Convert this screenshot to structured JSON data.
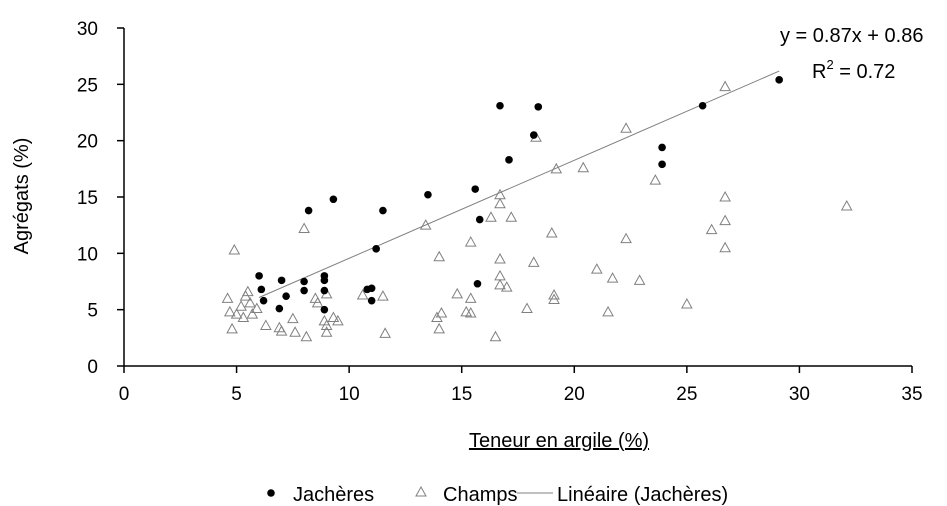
{
  "chart_data": {
    "type": "scatter",
    "title": "",
    "xlabel": "Teneur en argile (%)",
    "ylabel": "Agrégats (%)",
    "xlim": [
      0,
      35
    ],
    "ylim": [
      0,
      30
    ],
    "xticks": [
      0,
      5,
      10,
      15,
      20,
      25,
      30,
      35
    ],
    "yticks": [
      0,
      5,
      10,
      15,
      20,
      25,
      30
    ],
    "grid": false,
    "legend_position": "bottom",
    "series": [
      {
        "name": "Jachères",
        "marker": "filled-circle",
        "color": "#000000",
        "points": [
          [
            6.0,
            8.0
          ],
          [
            6.1,
            6.8
          ],
          [
            6.2,
            5.8
          ],
          [
            6.9,
            5.1
          ],
          [
            7.0,
            7.6
          ],
          [
            7.2,
            6.2
          ],
          [
            8.0,
            7.5
          ],
          [
            8.0,
            6.7
          ],
          [
            8.2,
            13.8
          ],
          [
            8.9,
            8.0
          ],
          [
            8.9,
            7.6
          ],
          [
            8.9,
            6.7
          ],
          [
            8.9,
            5.0
          ],
          [
            9.3,
            14.8
          ],
          [
            10.8,
            6.8
          ],
          [
            11.0,
            6.9
          ],
          [
            11.0,
            5.8
          ],
          [
            11.2,
            10.4
          ],
          [
            11.5,
            13.8
          ],
          [
            13.5,
            15.2
          ],
          [
            15.6,
            15.7
          ],
          [
            15.7,
            7.3
          ],
          [
            15.8,
            13.0
          ],
          [
            16.7,
            23.1
          ],
          [
            17.1,
            18.3
          ],
          [
            18.2,
            20.5
          ],
          [
            18.4,
            23.0
          ],
          [
            23.9,
            19.4
          ],
          [
            23.9,
            17.9
          ],
          [
            25.7,
            23.1
          ],
          [
            29.1,
            25.4
          ]
        ]
      },
      {
        "name": "Champs",
        "marker": "open-triangle",
        "color": "#808080",
        "points": [
          [
            4.6,
            6.0
          ],
          [
            4.7,
            4.8
          ],
          [
            4.8,
            3.3
          ],
          [
            4.9,
            10.3
          ],
          [
            5.0,
            4.6
          ],
          [
            5.2,
            5.3
          ],
          [
            5.3,
            4.3
          ],
          [
            5.4,
            6.2
          ],
          [
            5.5,
            6.6
          ],
          [
            5.6,
            5.6
          ],
          [
            5.7,
            4.6
          ],
          [
            5.9,
            5.1
          ],
          [
            6.3,
            3.6
          ],
          [
            6.9,
            3.4
          ],
          [
            7.0,
            3.1
          ],
          [
            7.5,
            4.2
          ],
          [
            7.6,
            3.0
          ],
          [
            8.0,
            12.2
          ],
          [
            8.1,
            2.6
          ],
          [
            8.5,
            6.0
          ],
          [
            8.6,
            5.6
          ],
          [
            8.9,
            4.0
          ],
          [
            9.0,
            3.6
          ],
          [
            9.0,
            3.0
          ],
          [
            9.0,
            6.4
          ],
          [
            9.3,
            4.3
          ],
          [
            9.5,
            4.0
          ],
          [
            10.6,
            6.3
          ],
          [
            11.5,
            6.2
          ],
          [
            11.6,
            2.9
          ],
          [
            13.4,
            12.5
          ],
          [
            13.9,
            4.3
          ],
          [
            14.0,
            3.3
          ],
          [
            14.1,
            4.7
          ],
          [
            14.0,
            9.7
          ],
          [
            14.8,
            6.4
          ],
          [
            15.2,
            4.8
          ],
          [
            15.4,
            4.7
          ],
          [
            15.4,
            6.0
          ],
          [
            15.4,
            11.0
          ],
          [
            16.3,
            13.2
          ],
          [
            16.5,
            2.6
          ],
          [
            16.7,
            15.2
          ],
          [
            16.7,
            14.4
          ],
          [
            16.7,
            9.5
          ],
          [
            16.7,
            8.0
          ],
          [
            16.7,
            7.2
          ],
          [
            17.0,
            7.0
          ],
          [
            17.2,
            13.2
          ],
          [
            17.9,
            5.1
          ],
          [
            18.2,
            9.2
          ],
          [
            18.3,
            20.3
          ],
          [
            19.0,
            11.8
          ],
          [
            19.1,
            6.3
          ],
          [
            19.1,
            5.9
          ],
          [
            19.2,
            17.5
          ],
          [
            20.4,
            17.6
          ],
          [
            21.0,
            8.6
          ],
          [
            21.5,
            4.8
          ],
          [
            21.7,
            7.8
          ],
          [
            22.3,
            21.1
          ],
          [
            22.3,
            11.3
          ],
          [
            22.9,
            7.6
          ],
          [
            23.6,
            16.5
          ],
          [
            25.0,
            5.5
          ],
          [
            26.1,
            12.1
          ],
          [
            26.7,
            24.8
          ],
          [
            26.7,
            15.0
          ],
          [
            26.7,
            12.9
          ],
          [
            26.7,
            10.5
          ],
          [
            32.1,
            14.2
          ]
        ]
      }
    ],
    "trendline": {
      "name": "Linéaire (Jachères)",
      "slope": 0.87,
      "intercept": 0.86,
      "x_range": [
        6.0,
        29.1
      ],
      "color": "#808080"
    },
    "annotations": {
      "equation": "y = 0.87x + 0.86",
      "r2_label": "R",
      "r2_exponent": "2",
      "r2_value": " = 0.72"
    },
    "legend": {
      "entries": [
        "Jachères",
        "Champs",
        "Linéaire (Jachères)"
      ]
    }
  }
}
